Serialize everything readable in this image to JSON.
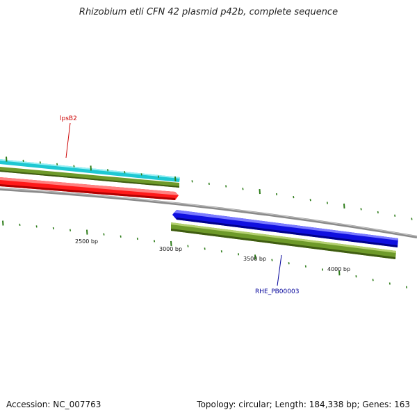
{
  "title": "Rhizobium etli CFN 42 plasmid p42b, complete sequence",
  "footer": {
    "accession": "Accession: NC_007763",
    "summary": "Topology: circular; Length: 184,338 bp; Genes: 163"
  },
  "colors": {
    "backbone": "#888888",
    "tick": "#2e7d1a",
    "cyan_track": "#1ec8d2",
    "olive_track": "#6e9a2a",
    "red_gene": "#ff1a1a",
    "blue_gene": "#1010e0",
    "label_red": "#cc0000",
    "label_blue": "#000099"
  },
  "scale_labels": [
    "2500 bp",
    "3000 bp",
    "3500 bp",
    "4000 bp"
  ],
  "genes": [
    {
      "name": "lpsB2",
      "label_color": "#cc0000"
    },
    {
      "name": "RHE_PB00003",
      "label_color": "#000099"
    }
  ]
}
